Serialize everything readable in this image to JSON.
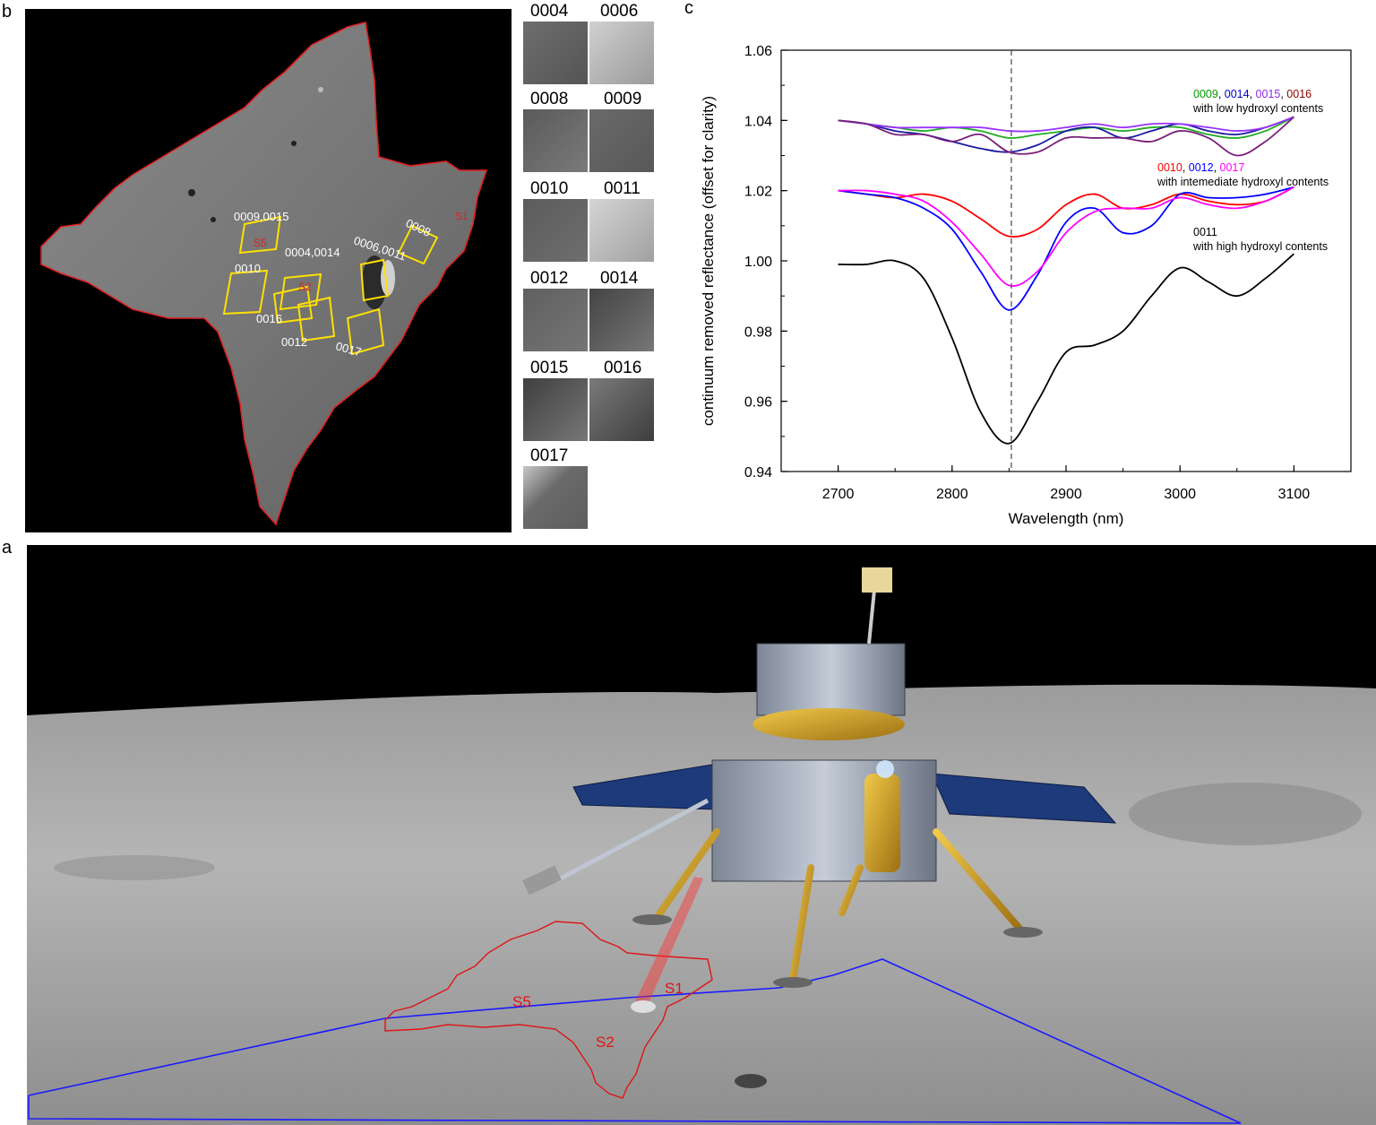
{
  "panel_labels": {
    "a": "a",
    "b": "b",
    "c": "c"
  },
  "panel_b": {
    "region_labels": [
      "0009,0015",
      "0008",
      "0010",
      "0004,0014",
      "0006,0011",
      "0016",
      "0012",
      "0017"
    ],
    "site_labels": [
      "S1",
      "S2",
      "S5"
    ]
  },
  "thumbnails": [
    {
      "id": "0004"
    },
    {
      "id": "0006"
    },
    {
      "id": "0008"
    },
    {
      "id": "0009"
    },
    {
      "id": "0010"
    },
    {
      "id": "0011"
    },
    {
      "id": "0012"
    },
    {
      "id": "0014"
    },
    {
      "id": "0015"
    },
    {
      "id": "0016"
    },
    {
      "id": "0017"
    }
  ],
  "panel_a": {
    "site_labels": [
      "S1",
      "S2",
      "S5"
    ]
  },
  "chart_data": {
    "type": "line",
    "xlabel": "Wavelength (nm)",
    "ylabel": "continuum removed reflectance (offset for clarity)",
    "xlim": [
      2650,
      3150
    ],
    "ylim": [
      0.94,
      1.06
    ],
    "x_ticks": [
      2700,
      2800,
      2900,
      3000,
      3100
    ],
    "y_ticks": [
      0.94,
      0.96,
      0.98,
      1.0,
      1.02,
      1.04,
      1.06
    ],
    "y_tick_labels": [
      "0.94",
      "0.96",
      "0.98",
      "1.00",
      "1.02",
      "1.04",
      "1.06"
    ],
    "vline_x": 2852,
    "groups": [
      {
        "ids": [
          {
            "text": "0009",
            "color": "#009900"
          },
          {
            "text": "0014",
            "color": "#0000cc"
          },
          {
            "text": "0015",
            "color": "#8a2be2"
          },
          {
            "text": "0016",
            "color": "#8b0000"
          }
        ],
        "description": "with low hydroxyl contents"
      },
      {
        "ids": [
          {
            "text": "0010",
            "color": "#ff0000"
          },
          {
            "text": "0012",
            "color": "#0000ff"
          },
          {
            "text": "0017",
            "color": "#ff00ff"
          }
        ],
        "description": "with intemediate hydroxyl contents"
      },
      {
        "ids": [
          {
            "text": "0011",
            "color": "#000000"
          }
        ],
        "description": "with high hydroxyl contents"
      }
    ],
    "series": [
      {
        "name": "0009",
        "color": "#22aa22",
        "x": [
          2700,
          2725,
          2750,
          2775,
          2800,
          2825,
          2850,
          2875,
          2900,
          2925,
          2950,
          2975,
          3000,
          3025,
          3050,
          3075,
          3100
        ],
        "y": [
          1.04,
          1.039,
          1.038,
          1.037,
          1.038,
          1.037,
          1.035,
          1.036,
          1.037,
          1.038,
          1.037,
          1.038,
          1.038,
          1.036,
          1.035,
          1.037,
          1.041
        ]
      },
      {
        "name": "0014",
        "color": "#1a1aa0",
        "x": [
          2700,
          2725,
          2750,
          2775,
          2800,
          2825,
          2850,
          2875,
          2900,
          2925,
          2950,
          2975,
          3000,
          3025,
          3050,
          3075,
          3100
        ],
        "y": [
          1.04,
          1.039,
          1.037,
          1.036,
          1.034,
          1.032,
          1.031,
          1.033,
          1.037,
          1.038,
          1.035,
          1.037,
          1.039,
          1.037,
          1.036,
          1.038,
          1.041
        ]
      },
      {
        "name": "0015",
        "color": "#9933ff",
        "x": [
          2700,
          2725,
          2750,
          2775,
          2800,
          2825,
          2850,
          2875,
          2900,
          2925,
          2950,
          2975,
          3000,
          3025,
          3050,
          3075,
          3100
        ],
        "y": [
          1.04,
          1.039,
          1.038,
          1.038,
          1.038,
          1.038,
          1.037,
          1.037,
          1.038,
          1.039,
          1.038,
          1.039,
          1.039,
          1.038,
          1.037,
          1.038,
          1.041
        ]
      },
      {
        "name": "0016",
        "color": "#7a1f7a",
        "x": [
          2700,
          2725,
          2750,
          2775,
          2800,
          2825,
          2850,
          2875,
          2900,
          2925,
          2950,
          2975,
          3000,
          3025,
          3050,
          3075,
          3100
        ],
        "y": [
          1.04,
          1.039,
          1.036,
          1.036,
          1.034,
          1.036,
          1.031,
          1.031,
          1.035,
          1.035,
          1.035,
          1.034,
          1.037,
          1.035,
          1.03,
          1.034,
          1.041
        ]
      },
      {
        "name": "0010",
        "color": "#ff0000",
        "x": [
          2700,
          2725,
          2750,
          2775,
          2800,
          2825,
          2850,
          2875,
          2900,
          2925,
          2950,
          2975,
          3000,
          3025,
          3050,
          3075,
          3100
        ],
        "y": [
          1.02,
          1.019,
          1.018,
          1.019,
          1.017,
          1.012,
          1.007,
          1.009,
          1.016,
          1.019,
          1.015,
          1.016,
          1.019,
          1.017,
          1.016,
          1.017,
          1.021
        ]
      },
      {
        "name": "0012",
        "color": "#0000ff",
        "x": [
          2700,
          2725,
          2750,
          2775,
          2800,
          2825,
          2850,
          2875,
          2900,
          2925,
          2950,
          2975,
          3000,
          3025,
          3050,
          3075,
          3100
        ],
        "y": [
          1.02,
          1.019,
          1.018,
          1.015,
          1.009,
          0.997,
          0.986,
          0.996,
          1.011,
          1.015,
          1.008,
          1.01,
          1.019,
          1.018,
          1.018,
          1.019,
          1.021
        ]
      },
      {
        "name": "0017",
        "color": "#ff00ff",
        "x": [
          2700,
          2725,
          2750,
          2775,
          2800,
          2825,
          2850,
          2875,
          2900,
          2925,
          2950,
          2975,
          3000,
          3025,
          3050,
          3075,
          3100
        ],
        "y": [
          1.02,
          1.02,
          1.019,
          1.017,
          1.011,
          1.002,
          0.993,
          0.997,
          1.008,
          1.014,
          1.015,
          1.015,
          1.018,
          1.016,
          1.015,
          1.017,
          1.021
        ]
      },
      {
        "name": "0011",
        "color": "#000000",
        "x": [
          2700,
          2725,
          2750,
          2775,
          2800,
          2825,
          2850,
          2875,
          2900,
          2925,
          2950,
          2975,
          3000,
          3025,
          3050,
          3075,
          3100
        ],
        "y": [
          0.999,
          0.999,
          1.0,
          0.995,
          0.978,
          0.957,
          0.948,
          0.96,
          0.974,
          0.976,
          0.98,
          0.99,
          0.998,
          0.994,
          0.99,
          0.995,
          1.002
        ]
      }
    ]
  }
}
